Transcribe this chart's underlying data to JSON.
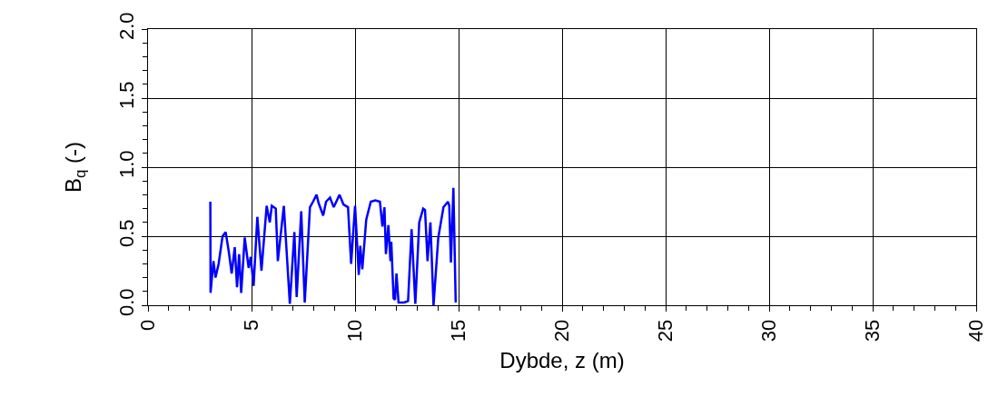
{
  "chart_data": {
    "type": "line",
    "xlabel": "Dybde, z (m)",
    "ylabel": "B$_{q}$ (-)",
    "x": [
      3.01,
      3.02,
      3.16,
      3.26,
      3.41,
      3.6,
      3.75,
      3.9,
      4.04,
      4.19,
      4.3,
      4.4,
      4.5,
      4.67,
      4.86,
      4.96,
      5.1,
      5.28,
      5.48,
      5.73,
      5.88,
      5.98,
      6.17,
      6.27,
      6.56,
      6.85,
      7.07,
      7.18,
      7.4,
      7.57,
      7.82,
      7.97,
      8.14,
      8.24,
      8.46,
      8.6,
      8.79,
      8.97,
      9.25,
      9.44,
      9.66,
      9.81,
      10.0,
      10.18,
      10.25,
      10.35,
      10.54,
      10.76,
      10.98,
      11.2,
      11.32,
      11.42,
      11.49,
      11.61,
      11.71,
      11.75,
      11.86,
      11.93,
      12.0,
      12.1,
      12.37,
      12.56,
      12.73,
      12.91,
      13.1,
      13.29,
      13.38,
      13.5,
      13.64,
      13.79,
      14.02,
      14.27,
      14.49,
      14.55,
      14.63,
      14.75,
      14.86
    ],
    "series": [
      {
        "color": "#0000ff",
        "values": [
          0.75,
          0.09,
          0.32,
          0.2,
          0.3,
          0.5,
          0.53,
          0.39,
          0.23,
          0.42,
          0.13,
          0.37,
          0.09,
          0.49,
          0.27,
          0.35,
          0.14,
          0.64,
          0.25,
          0.72,
          0.6,
          0.72,
          0.7,
          0.32,
          0.72,
          0.01,
          0.53,
          0.06,
          0.68,
          0.02,
          0.71,
          0.75,
          0.8,
          0.74,
          0.65,
          0.75,
          0.78,
          0.71,
          0.8,
          0.73,
          0.71,
          0.3,
          0.72,
          0.22,
          0.43,
          0.26,
          0.62,
          0.75,
          0.76,
          0.75,
          0.57,
          0.71,
          0.37,
          0.58,
          0.32,
          0.46,
          0.05,
          0.04,
          0.23,
          0.02,
          0.02,
          0.03,
          0.55,
          0.01,
          0.6,
          0.7,
          0.69,
          0.32,
          0.6,
          0.0,
          0.49,
          0.71,
          0.75,
          0.72,
          0.31,
          0.85,
          0.02
        ]
      }
    ],
    "xlim": [
      0,
      40
    ],
    "xticks": [
      0,
      5,
      10,
      15,
      20,
      25,
      30,
      35,
      40
    ],
    "ylim": [
      0,
      2
    ],
    "yticks": [
      {
        "value": 0,
        "label": "0.0"
      },
      0.5,
      {
        "value": 1,
        "label": "1.0"
      },
      1.5,
      {
        "value": 2,
        "label": "2.0"
      }
    ],
    "grid": true,
    "legend": false,
    "marker": "none",
    "line_style": "solid"
  }
}
